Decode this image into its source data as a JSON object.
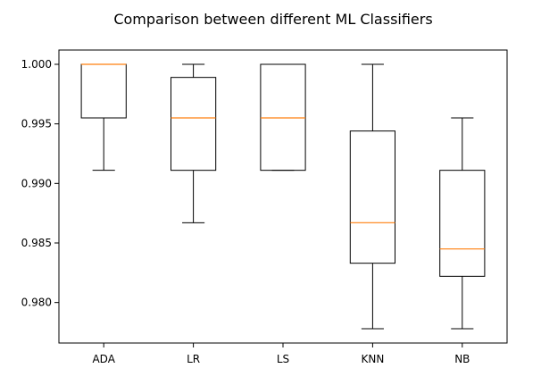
{
  "chart_data": {
    "type": "box",
    "title": "Comparison between different ML Classifiers",
    "xlabel": "",
    "ylabel": "",
    "ylim": [
      0.9766,
      1.0012
    ],
    "yticks": [
      1.0,
      0.995,
      0.99,
      0.985,
      0.98
    ],
    "ytick_labels": [
      "1.000",
      "0.995",
      "0.990",
      "0.985",
      "0.980"
    ],
    "grid": false,
    "colors": {
      "box": "#000000",
      "median": "#ff7f0e"
    },
    "categories": [
      "ADA",
      "LR",
      "LS",
      "KNN",
      "NB"
    ],
    "boxes": [
      {
        "label": "ADA",
        "whisker_low": 0.9911,
        "q1": 0.9955,
        "median": 1.0,
        "q3": 1.0,
        "whisker_high": 1.0
      },
      {
        "label": "LR",
        "whisker_low": 0.9867,
        "q1": 0.9911,
        "median": 0.9955,
        "q3": 0.9989,
        "whisker_high": 1.0
      },
      {
        "label": "LS",
        "whisker_low": 0.9911,
        "q1": 0.9911,
        "median": 0.9955,
        "q3": 1.0,
        "whisker_high": 1.0
      },
      {
        "label": "KNN",
        "whisker_low": 0.9778,
        "q1": 0.9833,
        "median": 0.9867,
        "q3": 0.9944,
        "whisker_high": 1.0
      },
      {
        "label": "NB",
        "whisker_low": 0.9778,
        "q1": 0.9822,
        "median": 0.9845,
        "q3": 0.9911,
        "whisker_high": 0.9955
      }
    ]
  }
}
